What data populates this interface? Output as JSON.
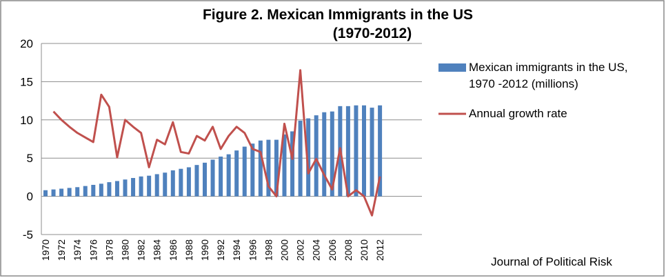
{
  "chart_data": {
    "type": "bar_line",
    "title": "Figure 2.  Mexican Immigrants  in the US",
    "subtitle": "(1970-2012)",
    "annotation": "Journal of Political Risk",
    "categories": [
      "1970",
      null,
      "1972",
      null,
      "1974",
      null,
      "1976",
      null,
      "1978",
      null,
      "1980",
      null,
      "1982",
      null,
      "1984",
      null,
      "1986",
      null,
      "1988",
      null,
      "1990",
      null,
      "1992",
      null,
      "1994",
      null,
      "1996",
      null,
      "1998",
      null,
      "2000",
      null,
      "2002",
      null,
      "2004",
      null,
      "2006",
      null,
      "2008",
      null,
      "2010",
      null,
      "2012"
    ],
    "series": [
      {
        "name": "Mexican immigrants in the US, 1970 -2012 (millions)",
        "type": "bar",
        "color": "#4f81bd",
        "values": [
          0.8,
          0.9,
          1.0,
          1.1,
          1.2,
          1.35,
          1.5,
          1.65,
          1.85,
          2.0,
          2.2,
          2.4,
          2.6,
          2.7,
          2.9,
          3.1,
          3.4,
          3.6,
          3.8,
          4.1,
          4.4,
          4.8,
          5.2,
          5.5,
          6.0,
          6.5,
          6.9,
          7.3,
          7.4,
          7.4,
          8.1,
          8.5,
          9.9,
          10.2,
          10.6,
          11.0,
          11.1,
          11.8,
          11.8,
          11.9,
          11.9,
          11.6,
          11.9
        ]
      },
      {
        "name": "Annual growth rate",
        "type": "line",
        "color": "#c0504d",
        "values": [
          null,
          11.1,
          10.0,
          9.1,
          8.3,
          7.7,
          7.1,
          13.3,
          11.7,
          5.1,
          10.0,
          9.1,
          8.3,
          3.8,
          7.4,
          6.8,
          9.7,
          5.8,
          5.6,
          7.9,
          7.3,
          9.1,
          6.2,
          7.9,
          9.1,
          8.3,
          6.2,
          5.8,
          1.3,
          0.0,
          9.5,
          4.9,
          16.5,
          3.0,
          4.9,
          2.8,
          0.9,
          6.3,
          0.0,
          0.8,
          0.0,
          -2.5,
          2.6
        ]
      }
    ],
    "ylim": [
      -5,
      20
    ],
    "yticks": [
      -5,
      0,
      5,
      10,
      15,
      20
    ],
    "grid": true,
    "legend": "right"
  }
}
